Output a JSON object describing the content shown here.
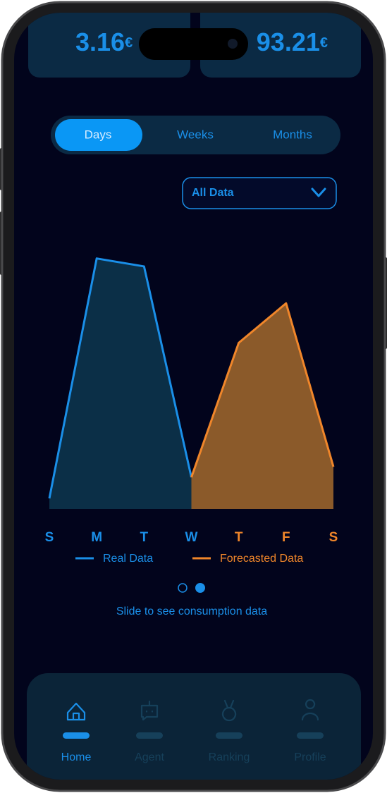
{
  "cards": [
    {
      "amount": "3.16",
      "currency": "€"
    },
    {
      "amount": "93.21",
      "currency": "€"
    }
  ],
  "tabs": [
    "Days",
    "Weeks",
    "Months"
  ],
  "dropdown": "All Data",
  "chart_data": {
    "type": "area",
    "categories": [
      "S",
      "M",
      "T",
      "W",
      "T",
      "F",
      "S"
    ],
    "series": [
      {
        "name": "Real Data",
        "color": "#1a8fe8",
        "fill": "#0b2f47",
        "values": [
          4,
          95,
          92,
          12,
          null,
          null,
          null
        ]
      },
      {
        "name": "Forecasted Data",
        "color": "#f0862a",
        "fill": "#8b5a2a",
        "values": [
          null,
          null,
          null,
          12,
          63,
          78,
          16
        ]
      }
    ],
    "ylim": [
      0,
      100
    ],
    "legend": "bottom"
  },
  "hint": "Slide to see consumption data",
  "nav": [
    "Home",
    "Agent",
    "Ranking",
    "Profile"
  ]
}
